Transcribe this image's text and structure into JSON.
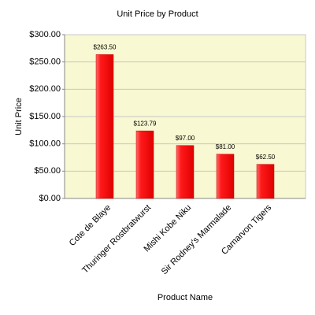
{
  "chart_data": {
    "type": "bar",
    "title": "Unit Price by Product",
    "x_label": "Product Name",
    "y_label": "Unit Price",
    "categories": [
      "Cote de Blaye",
      "Thuringer Rostbratwurst",
      "Mishi Kobe Niku",
      "Sir Rodney's Marmalade",
      "Carnarvon Tigers"
    ],
    "values": [
      263.5,
      123.79,
      97,
      81,
      62.5
    ],
    "value_labels": [
      "$263.50",
      "$123.79",
      "$97.00",
      "$81.00",
      "$62.50"
    ],
    "color": "#ff0000",
    "ylim": [
      0,
      300
    ],
    "yticks": [
      {
        "value": 0,
        "label": "$0.00"
      },
      {
        "value": 50,
        "label": "$50.00"
      },
      {
        "value": 100,
        "label": "$100.00"
      },
      {
        "value": 150,
        "label": "$150.00"
      },
      {
        "value": 200,
        "label": "$200.00"
      },
      {
        "value": 250,
        "label": "$250.00"
      },
      {
        "value": 300,
        "label": "$300.00"
      }
    ],
    "grid": true
  }
}
